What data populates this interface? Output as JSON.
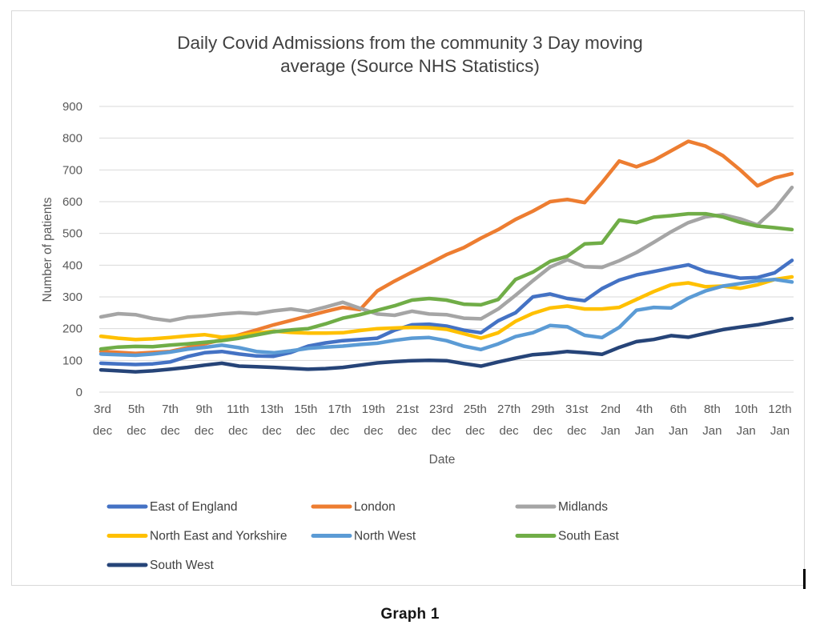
{
  "caption": "Graph 1",
  "chart_data": {
    "type": "line",
    "title": "Daily Covid Admissions from the community 3 Day moving average (Source NHS Statistics)",
    "title_lines": [
      "Daily Covid Admissions from the community 3 Day moving",
      "average (Source NHS Statistics)"
    ],
    "xlabel": "Date",
    "ylabel": "Number of patients",
    "ylim": [
      0,
      900
    ],
    "ytick_interval": 100,
    "ytick_labels": [
      "0",
      "100",
      "200",
      "300",
      "400",
      "500",
      "600",
      "700",
      "800",
      "900"
    ],
    "grid": "horizontal",
    "legend_position": "bottom",
    "x_first_point": "3rd dec",
    "x_points_per_tick": 2,
    "x_tick_labels": [
      "3rd dec",
      "5th dec",
      "7th dec",
      "9th dec",
      "11th dec",
      "13th dec",
      "15th dec",
      "17th dec",
      "19th dec",
      "21st dec",
      "23rd dec",
      "25th dec",
      "27th dec",
      "29th dec",
      "31st dec",
      "2nd Jan",
      "4th Jan",
      "6th Jan",
      "8th Jan",
      "10th Jan",
      "12th Jan"
    ],
    "series": [
      {
        "name": "East of England",
        "color": "#4472C4",
        "values": [
          91,
          89,
          87,
          89,
          95,
          112,
          124,
          128,
          120,
          114,
          113,
          125,
          145,
          155,
          162,
          166,
          170,
          195,
          212,
          214,
          208,
          195,
          187,
          225,
          250,
          300,
          309,
          295,
          288,
          326,
          353,
          369,
          380,
          391,
          401,
          380,
          369,
          359,
          361,
          376,
          415
        ]
      },
      {
        "name": "London",
        "color": "#ED7D31",
        "values": [
          128,
          125,
          122,
          125,
          128,
          140,
          152,
          165,
          180,
          196,
          212,
          226,
          240,
          254,
          267,
          260,
          319,
          350,
          378,
          405,
          433,
          455,
          485,
          512,
          544,
          570,
          600,
          607,
          597,
          660,
          728,
          710,
          730,
          760,
          790,
          775,
          745,
          700,
          650,
          675,
          688
        ]
      },
      {
        "name": "Midlands",
        "color": "#A5A5A5",
        "values": [
          237,
          247,
          244,
          232,
          225,
          236,
          240,
          246,
          250,
          247,
          256,
          262,
          254,
          268,
          283,
          264,
          246,
          242,
          255,
          246,
          244,
          233,
          231,
          262,
          305,
          351,
          394,
          417,
          395,
          393,
          414,
          440,
          472,
          505,
          534,
          552,
          559,
          546,
          527,
          577,
          645
        ]
      },
      {
        "name": "North East and Yorkshire",
        "color": "#FFC000",
        "values": [
          176,
          170,
          166,
          168,
          172,
          177,
          181,
          173,
          178,
          186,
          192,
          188,
          186,
          186,
          187,
          194,
          200,
          202,
          204,
          203,
          198,
          184,
          170,
          187,
          223,
          248,
          265,
          271,
          262,
          262,
          267,
          292,
          317,
          338,
          344,
          332,
          334,
          327,
          338,
          355,
          363
        ]
      },
      {
        "name": "North West",
        "color": "#5B9BD5",
        "values": [
          120,
          118,
          116,
          120,
          126,
          135,
          141,
          148,
          140,
          128,
          124,
          130,
          138,
          142,
          145,
          150,
          154,
          163,
          170,
          172,
          162,
          145,
          134,
          152,
          175,
          187,
          210,
          206,
          179,
          172,
          204,
          258,
          267,
          265,
          296,
          319,
          334,
          342,
          351,
          355,
          347
        ]
      },
      {
        "name": "South East",
        "color": "#70AD47",
        "values": [
          136,
          142,
          144,
          143,
          148,
          152,
          157,
          162,
          170,
          180,
          190,
          196,
          200,
          215,
          233,
          244,
          258,
          272,
          290,
          295,
          290,
          277,
          275,
          292,
          355,
          378,
          412,
          428,
          467,
          470,
          542,
          534,
          551,
          556,
          562,
          562,
          552,
          535,
          523,
          518,
          512
        ]
      },
      {
        "name": "South West",
        "color": "#264478",
        "values": [
          70,
          67,
          64,
          67,
          72,
          78,
          85,
          91,
          82,
          80,
          78,
          75,
          72,
          74,
          78,
          85,
          92,
          96,
          99,
          100,
          99,
          90,
          82,
          95,
          107,
          118,
          122,
          128,
          124,
          119,
          141,
          159,
          166,
          178,
          173,
          185,
          197,
          205,
          212,
          222,
          232
        ]
      }
    ]
  }
}
